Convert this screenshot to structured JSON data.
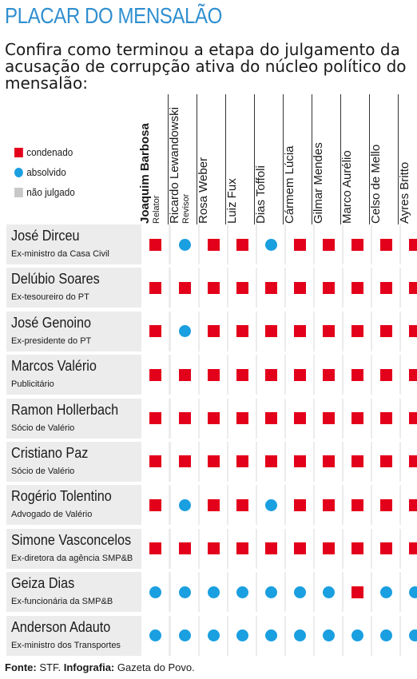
{
  "title": "PLACAR DO MENSALÃO",
  "subtitle": "Confira como terminou a etapa do julgamento da acusação de corrupção ativa do núcleo político do mensalão:",
  "legend": [
    {
      "label": "condenado",
      "status": "c"
    },
    {
      "label": "absolvido",
      "status": "a"
    },
    {
      "label": "não julgado",
      "status": "n"
    }
  ],
  "colors": {
    "condenado": "#e3001b",
    "absolvido": "#1a9fe0",
    "nao_julgado": "#c8c8c8",
    "title": "#2f8fd0",
    "row_bg": "#ececec"
  },
  "chart_data": {
    "type": "table",
    "title": "PLACAR DO MENSALÃO",
    "status_codes": {
      "c": "condenado",
      "a": "absolvido",
      "n": "não julgado"
    },
    "columns": [
      {
        "name": "Joaquim Barbosa",
        "role": "Relator",
        "bold": true
      },
      {
        "name": "Ricardo Lewandowski",
        "role": "Revisor"
      },
      {
        "name": "Rosa Weber",
        "role": ""
      },
      {
        "name": "Luiz Fux",
        "role": ""
      },
      {
        "name": "Dias Toffoli",
        "role": ""
      },
      {
        "name": "Cármem Lúcia",
        "role": ""
      },
      {
        "name": "Gilmar Mendes",
        "role": ""
      },
      {
        "name": "Marco Aurélio",
        "role": ""
      },
      {
        "name": "Celso de Mello",
        "role": ""
      },
      {
        "name": "Ayres Britto",
        "role": ""
      }
    ],
    "rows": [
      {
        "name": "José Dirceu",
        "role": "Ex-ministro da Casa Civil",
        "votes": [
          "c",
          "a",
          "c",
          "c",
          "a",
          "c",
          "c",
          "c",
          "c",
          "c"
        ]
      },
      {
        "name": "Delúbio Soares",
        "role": "Ex-tesoureiro do PT",
        "votes": [
          "c",
          "c",
          "c",
          "c",
          "c",
          "c",
          "c",
          "c",
          "c",
          "c"
        ]
      },
      {
        "name": "José Genoino",
        "role": "Ex-presidente do PT",
        "votes": [
          "c",
          "a",
          "c",
          "c",
          "c",
          "c",
          "c",
          "c",
          "c",
          "c"
        ]
      },
      {
        "name": "Marcos Valério",
        "role": "Publicitário",
        "votes": [
          "c",
          "c",
          "c",
          "c",
          "c",
          "c",
          "c",
          "c",
          "c",
          "c"
        ]
      },
      {
        "name": "Ramon Hollerbach",
        "role": "Sócio de Valério",
        "votes": [
          "c",
          "c",
          "c",
          "c",
          "c",
          "c",
          "c",
          "c",
          "c",
          "c"
        ]
      },
      {
        "name": "Cristiano Paz",
        "role": "Sócio de Valério",
        "votes": [
          "c",
          "c",
          "c",
          "c",
          "c",
          "c",
          "c",
          "c",
          "c",
          "c"
        ]
      },
      {
        "name": "Rogério Tolentino",
        "role": "Advogado de Valério",
        "votes": [
          "c",
          "a",
          "c",
          "c",
          "a",
          "c",
          "c",
          "c",
          "c",
          "c"
        ]
      },
      {
        "name": "Simone Vasconcelos",
        "role": "Ex-diretora da agência SMP&B",
        "votes": [
          "c",
          "c",
          "c",
          "c",
          "c",
          "c",
          "c",
          "c",
          "c",
          "c"
        ]
      },
      {
        "name": "Geiza Dias",
        "role": "Ex-funcionária da SMP&B",
        "votes": [
          "a",
          "a",
          "a",
          "a",
          "a",
          "a",
          "a",
          "c",
          "a",
          "a"
        ]
      },
      {
        "name": "Anderson Adauto",
        "role": "Ex-ministro dos Transportes",
        "votes": [
          "a",
          "a",
          "a",
          "a",
          "a",
          "a",
          "a",
          "a",
          "a",
          "a"
        ]
      }
    ]
  },
  "footer": {
    "source_label": "Fonte:",
    "source": "STF.",
    "infographic_label": "Infografia:",
    "infographic": "Gazeta do Povo."
  }
}
